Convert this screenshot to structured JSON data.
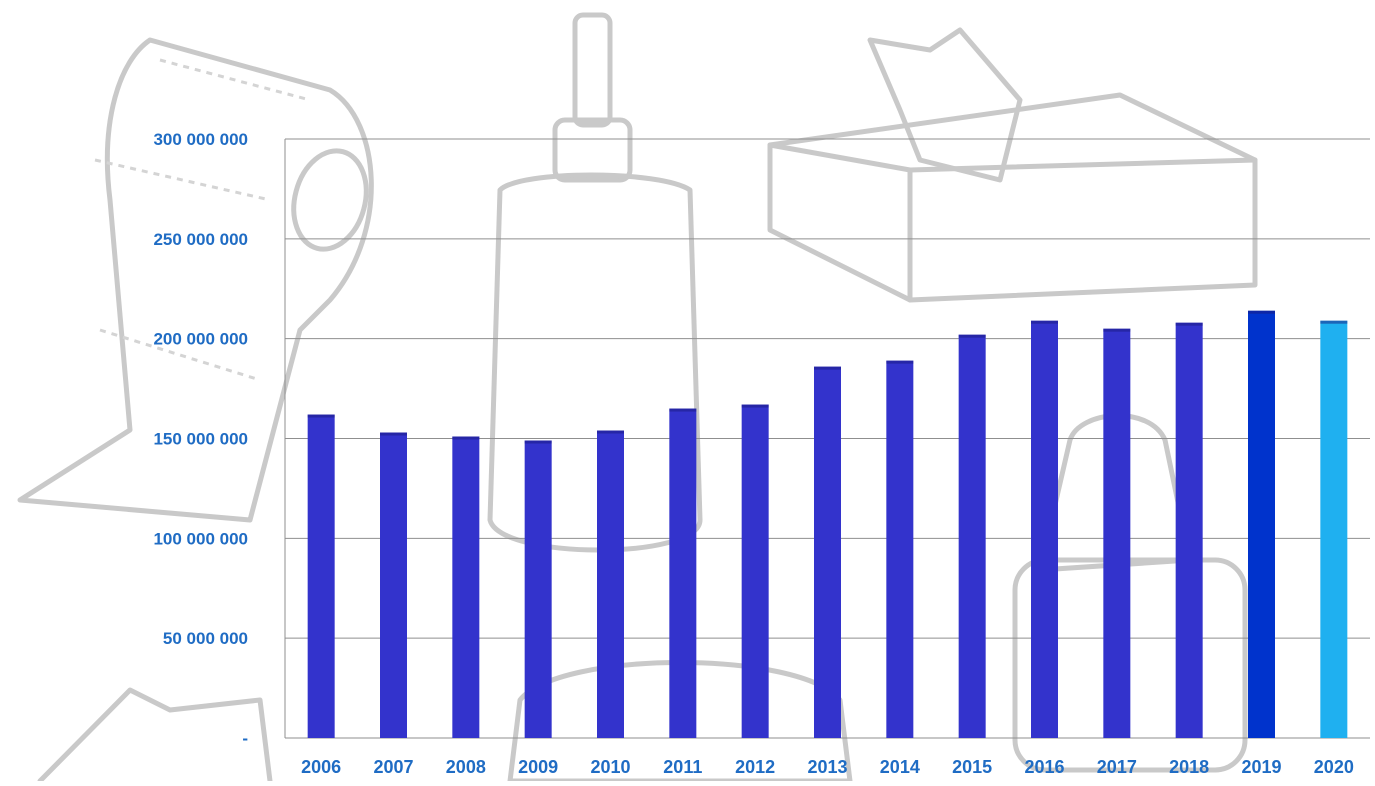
{
  "chart_data": {
    "type": "bar",
    "title": "",
    "xlabel": "",
    "ylabel": "",
    "categories": [
      "2006",
      "2007",
      "2008",
      "2009",
      "2010",
      "2011",
      "2012",
      "2013",
      "2014",
      "2015",
      "2016",
      "2017",
      "2018",
      "2019",
      "2020"
    ],
    "values": [
      162000000,
      153000000,
      151000000,
      149000000,
      154000000,
      165000000,
      167000000,
      186000000,
      189000000,
      202000000,
      209000000,
      205000000,
      208000000,
      214000000,
      209000000
    ],
    "bar_colors": [
      "#3333cc",
      "#3333cc",
      "#3333cc",
      "#3333cc",
      "#3333cc",
      "#3333cc",
      "#3333cc",
      "#3333cc",
      "#3333cc",
      "#3333cc",
      "#3333cc",
      "#3333cc",
      "#3333cc",
      "#0033cc",
      "#1fb0f0"
    ],
    "ylim": [
      0,
      300000000
    ],
    "yticks": [
      0,
      50000000,
      100000000,
      150000000,
      200000000,
      250000000,
      300000000
    ],
    "ytick_labels": [
      "-",
      "50 000 000",
      "100 000 000",
      "150 000 000",
      "200 000 000",
      "250 000 000",
      "300 000 000"
    ],
    "grid": true,
    "legend": "none"
  },
  "colors": {
    "tick_text": "#1f6cc4",
    "gridline": "#8f8f8f",
    "background_sketch": "#c9c9c9"
  }
}
